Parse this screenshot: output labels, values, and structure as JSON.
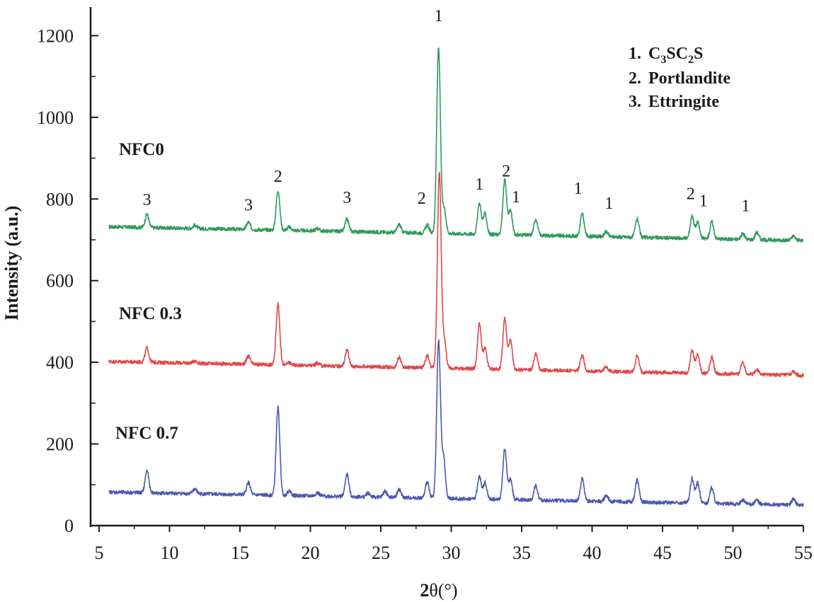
{
  "chart_data": {
    "type": "line",
    "xlabel_bold": "2",
    "xlabel_rest": "θ(°)",
    "ylabel": "Intensity (a.u.)",
    "xlim": [
      5,
      55
    ],
    "ylim": [
      0,
      1270
    ],
    "x_ticks": [
      5,
      10,
      15,
      20,
      25,
      30,
      35,
      40,
      45,
      50,
      55
    ],
    "y_ticks": [
      0,
      200,
      400,
      600,
      800,
      1000,
      1200
    ],
    "x_range_data": [
      5.7,
      55
    ],
    "peak_width": 0.13,
    "series": [
      {
        "name": "NFC0",
        "color": "#2e9a5a",
        "baseline_start": 732,
        "baseline_end": 698,
        "peaks": [
          [
            8.4,
            32
          ],
          [
            11.8,
            8
          ],
          [
            15.6,
            18
          ],
          [
            17.7,
            98
          ],
          [
            18.5,
            8
          ],
          [
            20.5,
            6
          ],
          [
            22.6,
            30
          ],
          [
            26.3,
            20
          ],
          [
            28.3,
            20
          ],
          [
            29.1,
            455
          ],
          [
            29.5,
            60
          ],
          [
            32.0,
            75
          ],
          [
            32.4,
            50
          ],
          [
            33.8,
            135
          ],
          [
            34.2,
            60
          ],
          [
            36.0,
            40
          ],
          [
            39.3,
            55
          ],
          [
            41.0,
            12
          ],
          [
            43.2,
            45
          ],
          [
            47.1,
            55
          ],
          [
            47.5,
            40
          ],
          [
            48.5,
            42
          ],
          [
            50.7,
            14
          ],
          [
            51.7,
            18
          ],
          [
            54.3,
            10
          ]
        ]
      },
      {
        "name": "NFC 0.3",
        "color": "#e04848",
        "baseline_start": 402,
        "baseline_end": 368,
        "peaks": [
          [
            8.4,
            35
          ],
          [
            11.8,
            6
          ],
          [
            15.6,
            20
          ],
          [
            17.7,
            148
          ],
          [
            18.5,
            6
          ],
          [
            20.5,
            6
          ],
          [
            22.6,
            40
          ],
          [
            26.3,
            25
          ],
          [
            28.3,
            30
          ],
          [
            29.15,
            480
          ],
          [
            29.5,
            70
          ],
          [
            32.0,
            110
          ],
          [
            32.4,
            50
          ],
          [
            33.8,
            125
          ],
          [
            34.2,
            70
          ],
          [
            36.0,
            40
          ],
          [
            39.3,
            40
          ],
          [
            41.0,
            12
          ],
          [
            43.2,
            40
          ],
          [
            47.1,
            55
          ],
          [
            47.5,
            45
          ],
          [
            48.5,
            40
          ],
          [
            50.7,
            30
          ],
          [
            51.7,
            12
          ],
          [
            54.3,
            8
          ]
        ]
      },
      {
        "name": "NFC 0.7",
        "color": "#4a58b0",
        "baseline_start": 82,
        "baseline_end": 50,
        "peaks": [
          [
            8.4,
            55
          ],
          [
            11.8,
            12
          ],
          [
            15.6,
            30
          ],
          [
            17.7,
            215
          ],
          [
            18.5,
            12
          ],
          [
            20.5,
            8
          ],
          [
            22.6,
            55
          ],
          [
            24.1,
            10
          ],
          [
            25.3,
            15
          ],
          [
            26.3,
            20
          ],
          [
            28.3,
            40
          ],
          [
            29.1,
            385
          ],
          [
            29.45,
            100
          ],
          [
            32.0,
            55
          ],
          [
            32.4,
            40
          ],
          [
            33.8,
            125
          ],
          [
            34.2,
            50
          ],
          [
            36.0,
            35
          ],
          [
            39.3,
            55
          ],
          [
            41.0,
            15
          ],
          [
            43.2,
            55
          ],
          [
            47.1,
            60
          ],
          [
            47.5,
            50
          ],
          [
            48.5,
            40
          ],
          [
            50.7,
            10
          ],
          [
            51.7,
            10
          ],
          [
            54.3,
            15
          ]
        ]
      }
    ],
    "series_labels": [
      "NFC0",
      "NFC 0.3",
      "NFC 0.7"
    ],
    "peak_annotations": [
      {
        "text": "1",
        "x": 29.1,
        "y": 1235
      },
      {
        "text": "3",
        "x": 8.4,
        "y": 785
      },
      {
        "text": "3",
        "x": 15.6,
        "y": 772
      },
      {
        "text": "2",
        "x": 17.7,
        "y": 842
      },
      {
        "text": "3",
        "x": 22.6,
        "y": 790
      },
      {
        "text": "2",
        "x": 27.9,
        "y": 788
      },
      {
        "text": "1",
        "x": 32.0,
        "y": 823
      },
      {
        "text": "2",
        "x": 33.9,
        "y": 855
      },
      {
        "text": "1",
        "x": 34.6,
        "y": 792
      },
      {
        "text": "1",
        "x": 39.0,
        "y": 813
      },
      {
        "text": "1",
        "x": 41.2,
        "y": 776
      },
      {
        "text": "2",
        "x": 47.0,
        "y": 800
      },
      {
        "text": "1",
        "x": 47.9,
        "y": 782
      },
      {
        "text": "1",
        "x": 50.9,
        "y": 770
      }
    ],
    "legend": [
      {
        "num": "1.",
        "base": "C",
        "sub1": "3",
        "mid": "SC",
        "sub2": "2",
        "end": "S"
      },
      {
        "num": "2.",
        "text": "Portlandite"
      },
      {
        "num": "3.",
        "text": "Ettringite"
      }
    ]
  }
}
